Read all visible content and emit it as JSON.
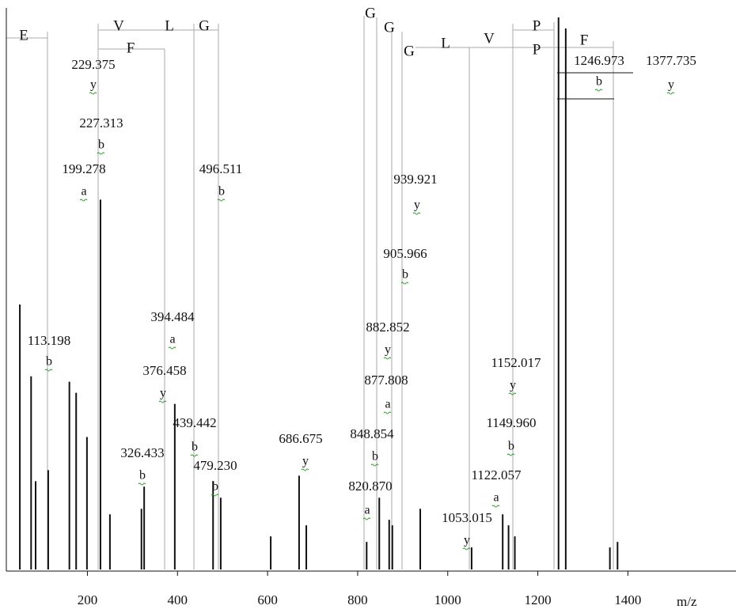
{
  "chart_data": {
    "type": "stem",
    "x_label": "m/z",
    "xlim": [
      20,
      1640
    ],
    "xticks": [
      200,
      400,
      600,
      800,
      1000,
      1200,
      1400
    ],
    "ylim": [
      0,
      100
    ],
    "color": "#111111",
    "x": [
      50,
      75,
      85,
      113,
      160,
      175,
      199,
      229,
      250,
      320,
      326,
      394,
      479,
      496,
      607,
      670,
      686,
      820,
      848,
      870,
      877,
      939,
      1053,
      1122,
      1135,
      1149,
      1246,
      1262,
      1360,
      1377
    ],
    "values": [
      48,
      35,
      16,
      18,
      34,
      32,
      24,
      67,
      10,
      11,
      15,
      30,
      16,
      13,
      6,
      17,
      8,
      5,
      13,
      9,
      8,
      11,
      4,
      10,
      8,
      6,
      100,
      98,
      4,
      5
    ],
    "annotations": [
      {
        "label": "229.375",
        "ion": "y"
      },
      {
        "label": "227.313",
        "ion": "b"
      },
      {
        "label": "199.278",
        "ion": "a"
      },
      {
        "label": "496.511",
        "ion": "b"
      },
      {
        "label": "939.921",
        "ion": "y"
      },
      {
        "label": "905.966",
        "ion": "b"
      },
      {
        "label": "394.484",
        "ion": "a"
      },
      {
        "label": "882.852",
        "ion": "y"
      },
      {
        "label": "113.198",
        "ion": "b"
      },
      {
        "label": "1152.017",
        "ion": "y"
      },
      {
        "label": "376.458",
        "ion": "y"
      },
      {
        "label": "877.808",
        "ion": "a"
      },
      {
        "label": "439.442",
        "ion": "b"
      },
      {
        "label": "1149.960",
        "ion": "b"
      },
      {
        "label": "686.675",
        "ion": "y"
      },
      {
        "label": "848.854",
        "ion": "b"
      },
      {
        "label": "326.433",
        "ion": "b"
      },
      {
        "label": "479.230",
        "ion": "b"
      },
      {
        "label": "1122.057",
        "ion": "a"
      },
      {
        "label": "820.870",
        "ion": "a"
      },
      {
        "label": "1053.015",
        "ion": "y"
      },
      {
        "label": "1246.973",
        "ion": "b"
      },
      {
        "label": "1377.735",
        "ion": "y"
      }
    ],
    "sequence": [
      "E",
      "V",
      "L",
      "G",
      "F",
      "G",
      "G",
      "G",
      "L",
      "V",
      "P",
      "P",
      "F"
    ]
  }
}
